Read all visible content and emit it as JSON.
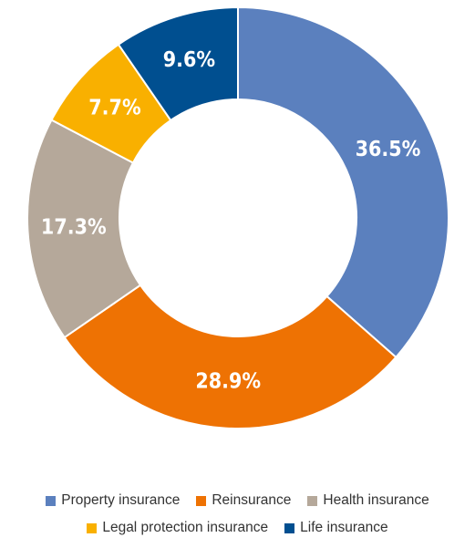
{
  "chart_data": {
    "type": "donut",
    "categories": [
      "Property insurance",
      "Reinsurance",
      "Health insurance",
      "Legal protection insurance",
      "Life insurance"
    ],
    "values": [
      36.5,
      28.9,
      17.3,
      7.7,
      9.6
    ],
    "value_labels": [
      "36.5%",
      "28.9%",
      "17.3%",
      "7.7%",
      "9.6%"
    ],
    "colors": [
      "#5b80be",
      "#ee7203",
      "#b5a89a",
      "#f9b000",
      "#004f90"
    ],
    "legend": "bottom"
  }
}
